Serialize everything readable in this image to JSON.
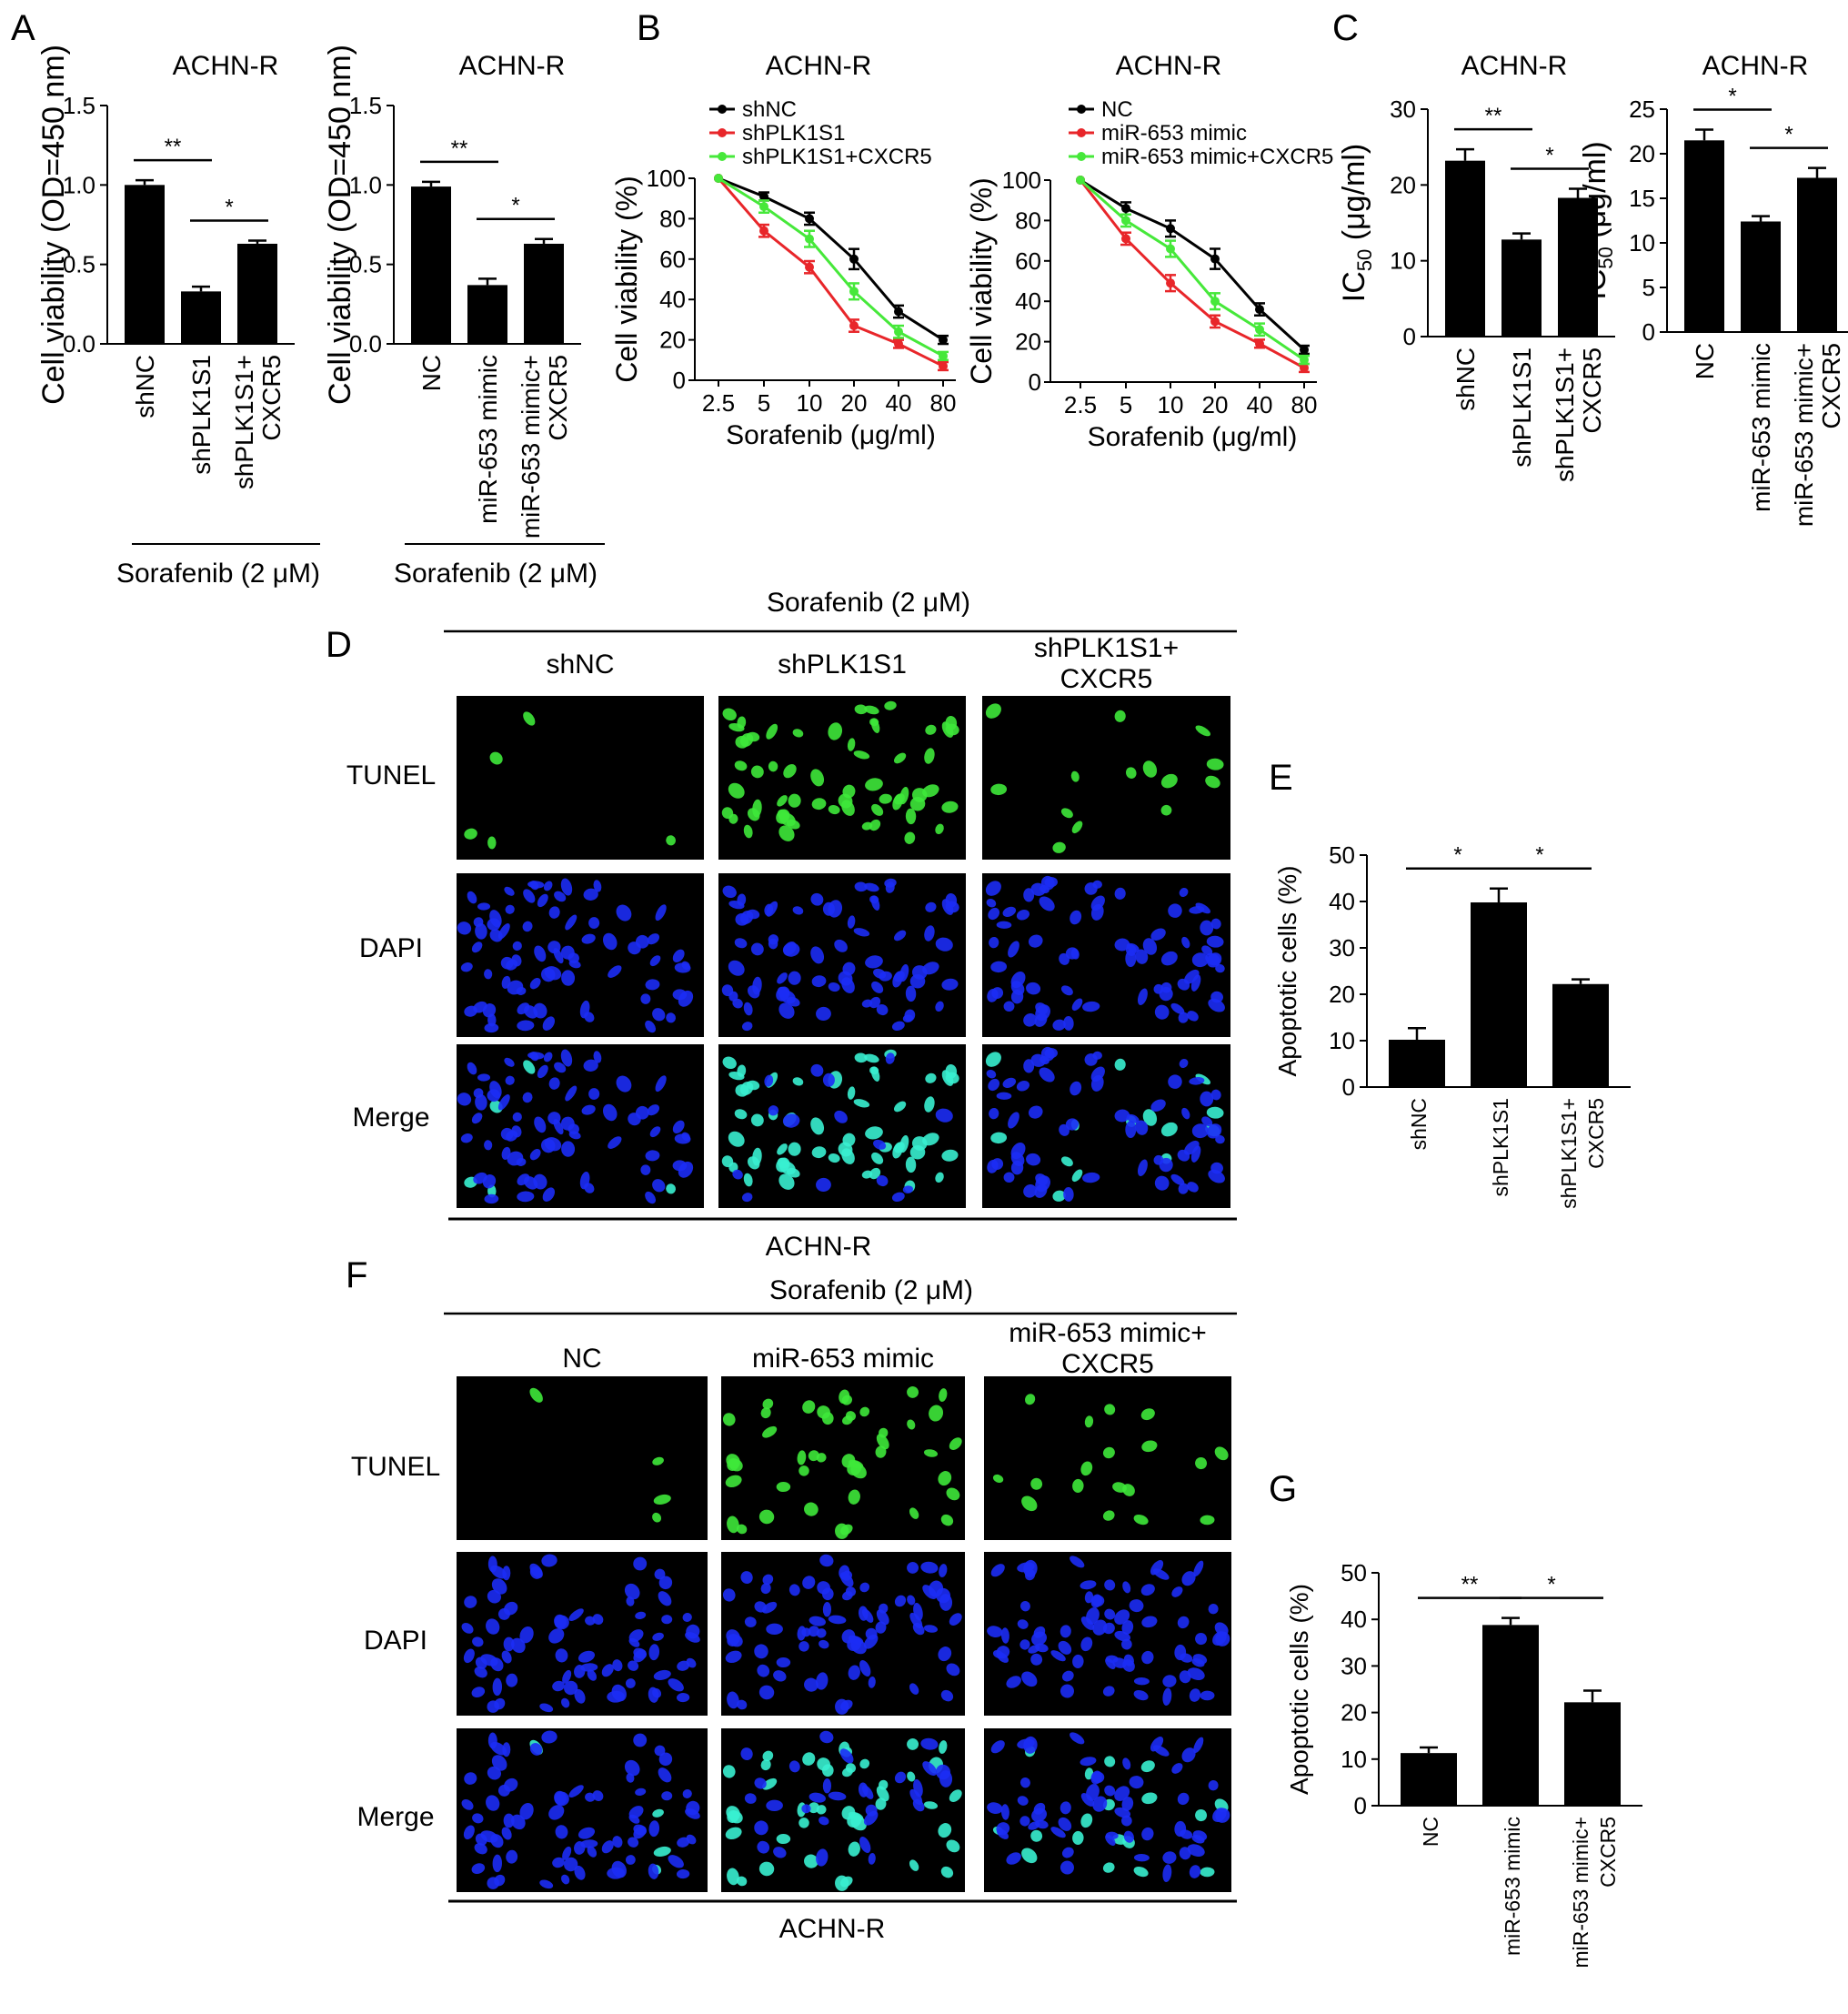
{
  "panels": {
    "A": "A",
    "B": "B",
    "C": "C",
    "D": "D",
    "E": "E",
    "F": "F",
    "G": "G"
  },
  "common": {
    "cell_line": "ACHN-R",
    "sorafenib": "Sorafenib (2 μM)"
  },
  "colors": {
    "bar": "#000000",
    "black_series": "#000000",
    "red_series": "#e8262a",
    "green_series": "#46e83a",
    "tunel_nucleus": "#3ee83a",
    "dapi_nucleus": "#1c2cf5",
    "merge_nucleus": "#39f0d0",
    "micrograph_bg": "#000000"
  },
  "microscopy": {
    "row_labels": [
      "TUNEL",
      "DAPI",
      "Merge"
    ],
    "D": {
      "columns": [
        "shNC",
        "shPLK1S1",
        "shPLK1S1+\nCXCR5"
      ],
      "tunel_counts": [
        5,
        60,
        14
      ],
      "footer": "ACHN-R"
    },
    "F": {
      "columns": [
        "NC",
        "miR-653 mimic",
        "miR-653 mimic+\nCXCR5"
      ],
      "tunel_counts": [
        4,
        45,
        18
      ],
      "footer": "ACHN-R"
    }
  },
  "chart_data": [
    {
      "id": "A1",
      "type": "bar",
      "title": "ACHN-R",
      "ylabel": "Cell viability (OD=450 nm)",
      "ylim": [
        0,
        1.5
      ],
      "yticks": [
        "0.0",
        "0.5",
        "1.0",
        "1.5"
      ],
      "categories": [
        "shNC",
        "shPLK1S1",
        "shPLK1S1+\nCXCR5"
      ],
      "values": [
        1.0,
        0.33,
        0.63
      ],
      "errors": [
        0.03,
        0.03,
        0.02
      ],
      "significance": [
        {
          "from": 0,
          "to": 1,
          "label": "**"
        },
        {
          "from": 1,
          "to": 2,
          "label": "*"
        }
      ],
      "group_label": "Sorafenib (2 μM)"
    },
    {
      "id": "A2",
      "type": "bar",
      "title": "ACHN-R",
      "ylabel": "Cell viability (OD=450 nm)",
      "ylim": [
        0,
        1.5
      ],
      "yticks": [
        "0.0",
        "0.5",
        "1.0",
        "1.5"
      ],
      "categories": [
        "NC",
        "miR-653 mimic",
        "miR-653 mimic+\nCXCR5"
      ],
      "values": [
        0.99,
        0.37,
        0.63
      ],
      "errors": [
        0.03,
        0.04,
        0.03
      ],
      "significance": [
        {
          "from": 0,
          "to": 1,
          "label": "**"
        },
        {
          "from": 1,
          "to": 2,
          "label": "*"
        }
      ],
      "group_label": "Sorafenib (2 μM)"
    },
    {
      "id": "B1",
      "type": "line",
      "title": "ACHN-R",
      "xlabel": "Sorafenib (μg/ml)",
      "ylabel": "Cell viability (%)",
      "x": [
        "2.5",
        "5",
        "10",
        "20",
        "40",
        "80"
      ],
      "ylim": [
        0,
        100
      ],
      "yticks": [
        "0",
        "20",
        "40",
        "60",
        "80",
        "100"
      ],
      "legend_position": "top-left",
      "series": [
        {
          "name": "shNC",
          "color": "#000000",
          "values": [
            100,
            91,
            80,
            60,
            34,
            20
          ],
          "errors": [
            0,
            2,
            3,
            5,
            3,
            2
          ]
        },
        {
          "name": "shPLK1S1",
          "color": "#e8262a",
          "values": [
            100,
            74,
            56,
            27,
            18,
            7
          ],
          "errors": [
            0,
            3,
            3,
            3,
            2,
            2
          ]
        },
        {
          "name": "shPLK1S1+CXCR5",
          "color": "#46e83a",
          "values": [
            100,
            86,
            70,
            44,
            24,
            12
          ],
          "errors": [
            0,
            3,
            4,
            4,
            3,
            2
          ]
        }
      ]
    },
    {
      "id": "B2",
      "type": "line",
      "title": "ACHN-R",
      "xlabel": "Sorafenib (μg/ml)",
      "ylabel": "Cell viability (%)",
      "x": [
        "2.5",
        "5",
        "10",
        "20",
        "40",
        "80"
      ],
      "ylim": [
        0,
        100
      ],
      "yticks": [
        "0",
        "20",
        "40",
        "60",
        "80",
        "100"
      ],
      "legend_position": "top-left",
      "series": [
        {
          "name": "NC",
          "color": "#000000",
          "values": [
            100,
            86,
            76,
            61,
            36,
            16
          ],
          "errors": [
            0,
            3,
            4,
            5,
            3,
            2
          ]
        },
        {
          "name": "miR-653 mimic",
          "color": "#e8262a",
          "values": [
            100,
            71,
            49,
            30,
            19,
            7
          ],
          "errors": [
            0,
            3,
            4,
            3,
            2,
            2
          ]
        },
        {
          "name": "miR-653 mimic+CXCR5",
          "color": "#46e83a",
          "values": [
            100,
            80,
            66,
            40,
            26,
            11
          ],
          "errors": [
            0,
            3,
            4,
            4,
            3,
            2
          ]
        }
      ]
    },
    {
      "id": "C1",
      "type": "bar",
      "title": "ACHN-R",
      "ylabel": "IC50 (μg/ml)",
      "ylabel_main": "IC",
      "ylabel_sub": "50",
      "ylabel_rest": " (μg/ml)",
      "ylim": [
        0,
        30
      ],
      "yticks": [
        "0",
        "10",
        "20",
        "30"
      ],
      "categories": [
        "shNC",
        "shPLK1S1",
        "shPLK1S1+\nCXCR5"
      ],
      "values": [
        23.2,
        12.8,
        18.3
      ],
      "errors": [
        1.5,
        0.8,
        1.2
      ],
      "significance": [
        {
          "from": 0,
          "to": 1,
          "label": "**"
        },
        {
          "from": 1,
          "to": 2,
          "label": "*"
        }
      ]
    },
    {
      "id": "C2",
      "type": "bar",
      "title": "ACHN-R",
      "ylabel": "IC50 (μg/ml)",
      "ylabel_main": "IC",
      "ylabel_sub": "50",
      "ylabel_rest": " (μg/ml)",
      "ylim": [
        0,
        25
      ],
      "yticks": [
        "0",
        "5",
        "10",
        "15",
        "20",
        "25"
      ],
      "categories": [
        "NC",
        "miR-653 mimic",
        "miR-653 mimic+\nCXCR5"
      ],
      "values": [
        21.5,
        12.4,
        17.3
      ],
      "errors": [
        1.2,
        0.6,
        1.1
      ],
      "significance": [
        {
          "from": 0,
          "to": 1,
          "label": "*"
        },
        {
          "from": 1,
          "to": 2,
          "label": "*"
        }
      ]
    },
    {
      "id": "E",
      "type": "bar",
      "ylabel": "Apoptotic cells (%)",
      "ylim": [
        0,
        50
      ],
      "yticks": [
        "0",
        "10",
        "20",
        "30",
        "40",
        "50"
      ],
      "categories": [
        "shNC",
        "shPLK1S1",
        "shPLK1S1+\nCXCR5"
      ],
      "values": [
        10.2,
        39.8,
        22.2
      ],
      "errors": [
        2.5,
        3.0,
        1.0
      ],
      "significance": [
        {
          "from": 0,
          "to": 1,
          "label": "*"
        },
        {
          "from": 1,
          "to": 2,
          "label": "*"
        }
      ]
    },
    {
      "id": "G",
      "type": "bar",
      "ylabel": "Apoptotic cells (%)",
      "ylim": [
        0,
        50
      ],
      "yticks": [
        "0",
        "10",
        "20",
        "30",
        "40",
        "50"
      ],
      "categories": [
        "NC",
        "miR-653 mimic",
        "miR-653 mimic+\nCXCR5"
      ],
      "values": [
        11.3,
        38.8,
        22.2
      ],
      "errors": [
        1.2,
        1.5,
        2.5
      ],
      "significance": [
        {
          "from": 0,
          "to": 1,
          "label": "**"
        },
        {
          "from": 1,
          "to": 2,
          "label": "*"
        }
      ]
    }
  ]
}
